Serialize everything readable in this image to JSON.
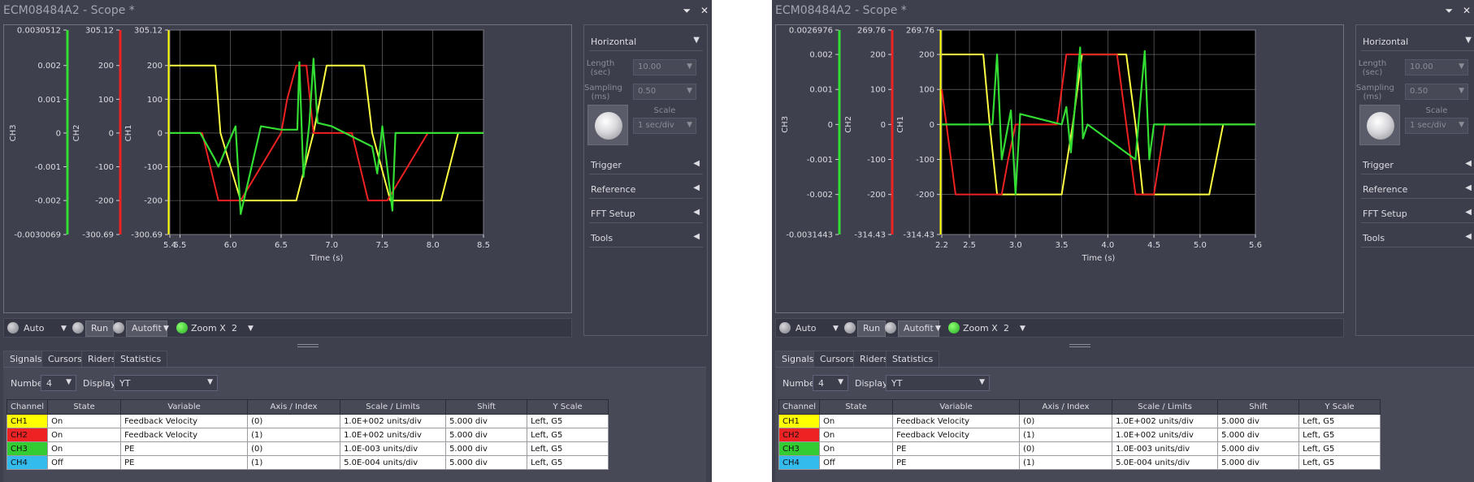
{
  "windows": [
    {
      "title": "ECM08484A2 - Scope *",
      "title_icons": {
        "pin": "pin-icon",
        "close": "close-icon"
      },
      "plot": {
        "axes": [
          {
            "label": "CH3",
            "color": "#33dd33",
            "ticks": [
              "0.0030512",
              "0.002",
              "0.001",
              "0",
              "-0.001",
              "-0.002",
              "-0.0030069"
            ]
          },
          {
            "label": "CH2",
            "color": "#ee2222",
            "ticks": [
              "305.12",
              "200",
              "100",
              "0",
              "-100",
              "-200",
              "-300.69"
            ]
          },
          {
            "label": "CH1",
            "color": "#ffff00",
            "ticks": [
              "305.12",
              "200",
              "100",
              "0",
              "-100",
              "-200",
              "-300.69"
            ]
          }
        ],
        "xticks": [
          "5.4",
          "5.5",
          "6.0",
          "6.5",
          "7.0",
          "7.5",
          "8.0",
          "8.5"
        ],
        "xlabel": "Time (s)"
      },
      "chart_data": {
        "type": "line",
        "xlabel": "Time (s)",
        "xlim": [
          5.4,
          8.5
        ],
        "ylim": [
          -300.69,
          305.12
        ],
        "grid": true,
        "series": [
          {
            "name": "CH1",
            "color": "#ffff44",
            "x": [
              5.4,
              5.85,
              5.9,
              6.1,
              6.15,
              6.65,
              6.82,
              6.95,
              7.32,
              7.4,
              7.58,
              7.63,
              8.08,
              8.25,
              8.5
            ],
            "y": [
              200,
              200,
              0,
              -200,
              -200,
              -200,
              0,
              200,
              200,
              0,
              -200,
              -200,
              -200,
              0,
              0
            ]
          },
          {
            "name": "CH2",
            "color": "#ee2222",
            "x": [
              5.4,
              5.72,
              5.8,
              5.88,
              6.1,
              6.5,
              6.56,
              6.65,
              6.75,
              6.82,
              6.95,
              7.2,
              7.28,
              7.36,
              7.55,
              7.95,
              8.05,
              8.12,
              8.25,
              8.5
            ],
            "y": [
              0,
              0,
              -100,
              -200,
              -200,
              0,
              100,
              200,
              200,
              0,
              0,
              0,
              -100,
              -200,
              -200,
              0,
              0,
              0,
              0,
              0
            ]
          },
          {
            "name": "CH3",
            "color": "#33dd33",
            "x": [
              5.4,
              5.7,
              5.85,
              5.88,
              5.95,
              6.05,
              6.1,
              6.3,
              6.5,
              6.66,
              6.68,
              6.72,
              6.78,
              6.82,
              6.86,
              7.0,
              7.4,
              7.45,
              7.5,
              7.6,
              7.63,
              7.9,
              8.2,
              8.5
            ],
            "y": [
              0,
              0,
              -0.0008,
              -0.001,
              -0.0005,
              0.0002,
              -0.0024,
              0.0002,
              0.0001,
              0.0001,
              0.0021,
              -0.0013,
              0.0003,
              0.0022,
              0.0003,
              0.0002,
              -0.0004,
              -0.0012,
              0.0002,
              -0.0023,
              0,
              0,
              0,
              0
            ]
          }
        ]
      },
      "toolbar": {
        "auto": "Auto",
        "run": "Run",
        "autofit": "Autofit",
        "zoom": "Zoom X",
        "zoom_value": "2"
      },
      "right_panel": {
        "horizontal": "Horizontal",
        "length_label": "Length (sec)",
        "length_value": "10.00",
        "sampling_label": "Sampling (ms)",
        "sampling_value": "0.50",
        "scale_label": "Scale",
        "scale_value": "1 sec/div",
        "trigger": "Trigger",
        "reference": "Reference",
        "fft": "FFT Setup",
        "tools": "Tools"
      },
      "tabs": [
        "Signals",
        "Cursors",
        "Riders",
        "Statistics"
      ],
      "number_label": "Number",
      "number_value": "4",
      "display_label": "Display",
      "display_value": "YT",
      "table": {
        "headers": [
          "Channel",
          "State",
          "Variable",
          "Axis / Index",
          "Scale / Limits",
          "Shift",
          "Y Scale"
        ],
        "rows": [
          [
            "CH1",
            "On",
            "Feedback Velocity",
            "(0)",
            "1.0E+002 units/div",
            "5.000 div",
            "Left, G5"
          ],
          [
            "CH2",
            "On",
            "Feedback Velocity",
            "(1)",
            "1.0E+002 units/div",
            "5.000 div",
            "Left, G5"
          ],
          [
            "CH3",
            "On",
            "PE",
            "(0)",
            "1.0E-003 units/div",
            "5.000 div",
            "Left, G5"
          ],
          [
            "CH4",
            "Off",
            "PE",
            "(1)",
            "5.0E-004 units/div",
            "5.000 div",
            "Left, G5"
          ]
        ]
      }
    },
    {
      "title": "ECM08484A2 - Scope *",
      "title_icons": {
        "pin": "pin-icon",
        "close": "close-icon"
      },
      "plot": {
        "axes": [
          {
            "label": "CH3",
            "color": "#33dd33",
            "ticks": [
              "0.0026976",
              "0.002",
              "0.001",
              "0",
              "-0.001",
              "-0.002",
              "-0.0031443"
            ]
          },
          {
            "label": "CH2",
            "color": "#ee2222",
            "ticks": [
              "269.76",
              "200",
              "100",
              "0",
              "-100",
              "-200",
              "-314.43"
            ]
          },
          {
            "label": "CH1",
            "color": "#ffff00",
            "ticks": [
              "269.76",
              "200",
              "100",
              "0",
              "-100",
              "-200",
              "-314.43"
            ]
          }
        ],
        "xticks": [
          "2.2",
          "2.5",
          "3.0",
          "3.5",
          "4.0",
          "4.5",
          "5.0",
          "5.6"
        ],
        "xlabel": "Time (s)"
      },
      "chart_data": {
        "type": "line",
        "xlabel": "Time (s)",
        "xlim": [
          2.2,
          5.6
        ],
        "ylim": [
          -314.43,
          269.76
        ],
        "grid": true,
        "series": [
          {
            "name": "CH1",
            "color": "#ffff44",
            "x": [
              2.2,
              2.65,
              2.72,
              2.8,
              3.0,
              3.5,
              3.62,
              3.72,
              4.2,
              4.3,
              4.38,
              4.55,
              5.1,
              5.25,
              5.35,
              5.6
            ],
            "y": [
              200,
              200,
              0,
              -200,
              -200,
              -200,
              0,
              200,
              200,
              0,
              -200,
              -200,
              -200,
              0,
              0,
              0
            ]
          },
          {
            "name": "CH2",
            "color": "#ee2222",
            "x": [
              2.2,
              2.25,
              2.35,
              2.85,
              2.92,
              3.0,
              3.45,
              3.55,
              3.65,
              4.1,
              4.2,
              4.3,
              4.5,
              4.62,
              5.6
            ],
            "y": [
              100,
              0,
              -200,
              -200,
              -100,
              0,
              0,
              200,
              200,
              200,
              0,
              -200,
              -200,
              0,
              0
            ]
          },
          {
            "name": "CH3",
            "color": "#33dd33",
            "x": [
              2.2,
              2.75,
              2.8,
              2.85,
              2.95,
              3.0,
              3.05,
              3.5,
              3.55,
              3.6,
              3.7,
              3.73,
              3.78,
              4.3,
              4.35,
              4.4,
              4.45,
              4.5,
              5.6
            ],
            "y": [
              0,
              0,
              0.002,
              -0.001,
              0.0004,
              -0.002,
              0.0003,
              0,
              0.0005,
              -0.0008,
              0.0022,
              -0.0004,
              0,
              -0.001,
              0.0006,
              0.0021,
              -0.001,
              0,
              0
            ]
          }
        ]
      },
      "toolbar": {
        "auto": "Auto",
        "run": "Run",
        "autofit": "Autofit",
        "zoom": "Zoom X",
        "zoom_value": "2"
      },
      "right_panel": {
        "horizontal": "Horizontal",
        "length_label": "Length (sec)",
        "length_value": "10.00",
        "sampling_label": "Sampling (ms)",
        "sampling_value": "0.50",
        "scale_label": "Scale",
        "scale_value": "1 sec/div",
        "trigger": "Trigger",
        "reference": "Reference",
        "fft": "FFT Setup",
        "tools": "Tools"
      },
      "tabs": [
        "Signals",
        "Cursors",
        "Riders",
        "Statistics"
      ],
      "number_label": "Number",
      "number_value": "4",
      "display_label": "Display",
      "display_value": "YT",
      "table": {
        "headers": [
          "Channel",
          "State",
          "Variable",
          "Axis / Index",
          "Scale / Limits",
          "Shift",
          "Y Scale"
        ],
        "rows": [
          [
            "CH1",
            "On",
            "Feedback Velocity",
            "(0)",
            "1.0E+002 units/div",
            "5.000 div",
            "Left, G5"
          ],
          [
            "CH2",
            "On",
            "Feedback Velocity",
            "(1)",
            "1.0E+002 units/div",
            "5.000 div",
            "Left, G5"
          ],
          [
            "CH3",
            "On",
            "PE",
            "(0)",
            "1.0E-003 units/div",
            "5.000 div",
            "Left, G5"
          ],
          [
            "CH4",
            "Off",
            "PE",
            "(1)",
            "5.0E-004 units/div",
            "5.000 div",
            "Left, G5"
          ]
        ]
      }
    }
  ]
}
